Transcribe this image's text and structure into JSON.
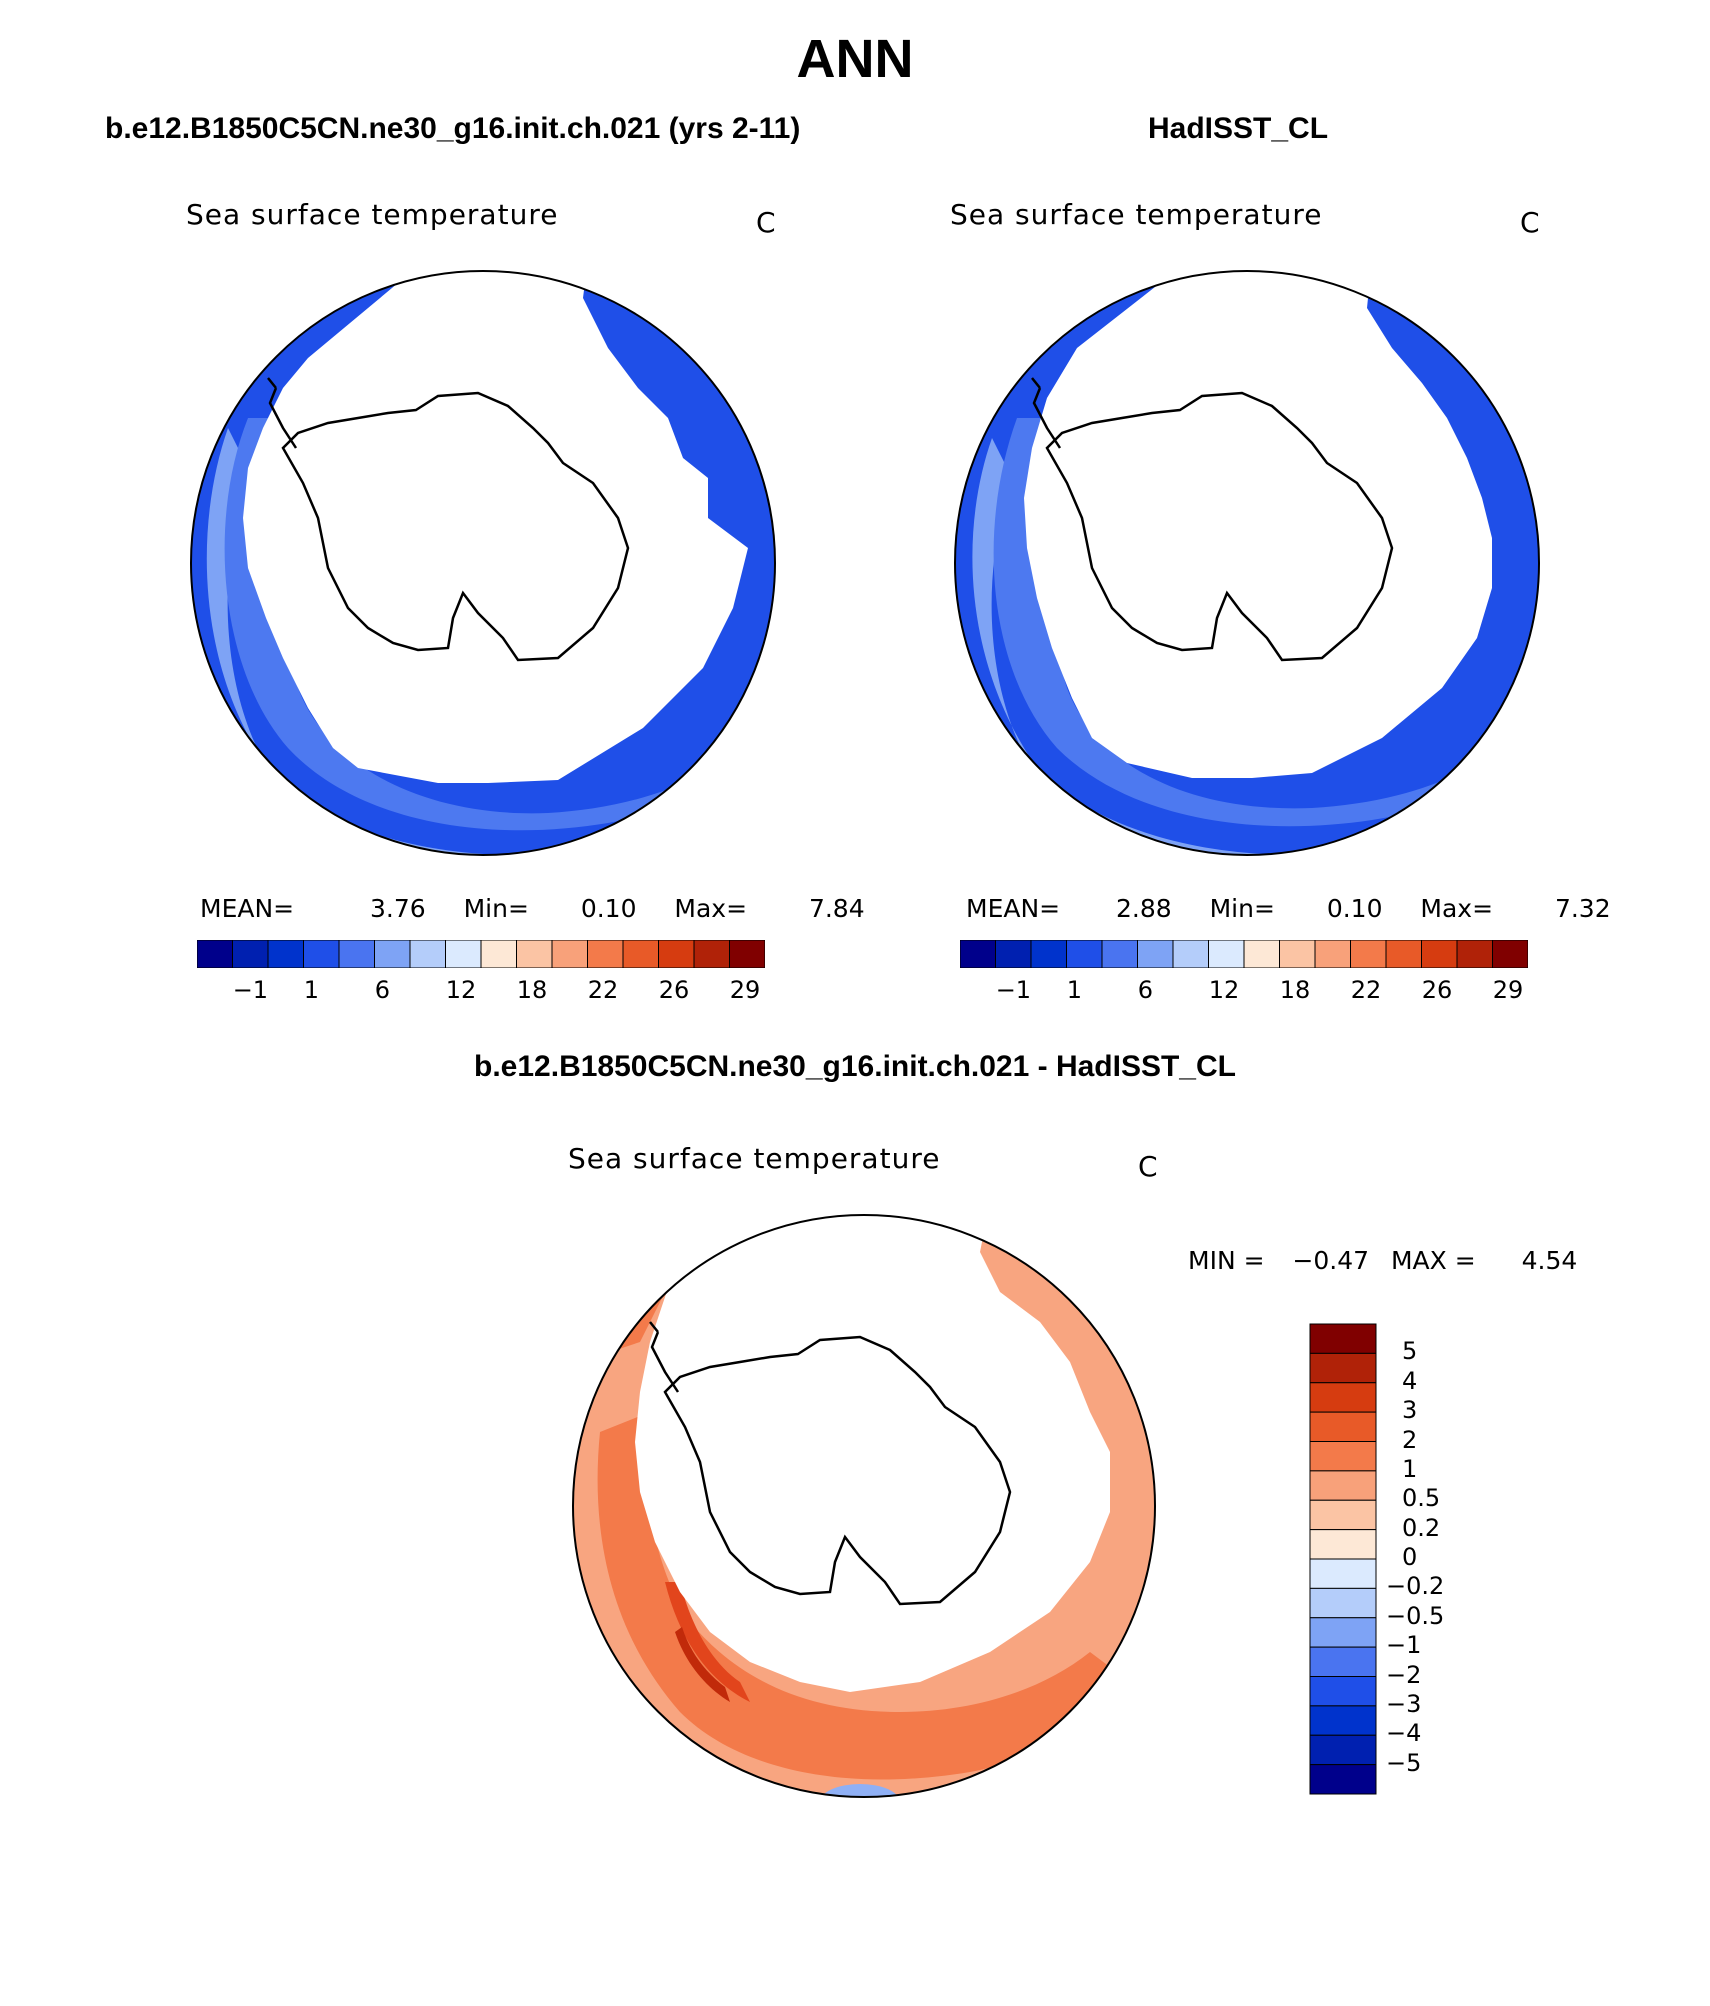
{
  "title": "ANN",
  "colors": {
    "ocean_dark": "#1f4fe8",
    "ocean_mid": "#4d79f0",
    "ocean_light": "#7ea3f5",
    "diff_light": "#f8a580",
    "diff_mid": "#f37a4a",
    "diff_dark": "#e2451c",
    "diff_darkest": "#c12a0a",
    "diff_neg": "#8fb0f5"
  },
  "panels": [
    {
      "title": "b.e12.B1850C5CN.ne30_g16.init.ch.021 (yrs 2-11)",
      "variable": "Sea surface temperature",
      "units": "C",
      "mean_label": "MEAN=",
      "mean": "3.76",
      "min_label": "Min=",
      "min": "0.10",
      "max_label": "Max=",
      "max": "7.84"
    },
    {
      "title": "HadISST_CL",
      "variable": "Sea surface temperature",
      "units": "C",
      "mean_label": "MEAN=",
      "mean": "2.88",
      "min_label": "Min=",
      "min": "0.10",
      "max_label": "Max=",
      "max": "7.32"
    }
  ],
  "colorbar": {
    "tick_labels": [
      "−1",
      "1",
      "6",
      "12",
      "18",
      "22",
      "26",
      "29"
    ],
    "colors": [
      "#00008b",
      "#0020b0",
      "#0033cc",
      "#1f4fe8",
      "#4a74f0",
      "#7ea3f5",
      "#b4cdfa",
      "#dbeafe",
      "#fde8d6",
      "#fbc4a4",
      "#f8a17a",
      "#f37a4a",
      "#e85a28",
      "#d63c10",
      "#b02208",
      "#800000"
    ]
  },
  "difference": {
    "title": "b.e12.B1850C5CN.ne30_g16.init.ch.021 - HadISST_CL",
    "variable": "Sea surface temperature",
    "units": "C",
    "min_label": "MIN =",
    "min": "−0.47",
    "max_label": "MAX =",
    "max": "4.54",
    "levels": [
      "5",
      "4",
      "3",
      "2",
      "1",
      "0.5",
      "0.2",
      "0",
      "−0.2",
      "−0.5",
      "−1",
      "−2",
      "−3",
      "−4",
      "−5"
    ],
    "colors": [
      "#800000",
      "#b02208",
      "#d63c10",
      "#e85a28",
      "#f37a4a",
      "#f8a17a",
      "#fbc4a4",
      "#fde8d6",
      "#dbeafe",
      "#b4cdfa",
      "#7ea3f5",
      "#4a74f0",
      "#1f4fe8",
      "#0033cc",
      "#0020b0",
      "#00008b"
    ]
  }
}
